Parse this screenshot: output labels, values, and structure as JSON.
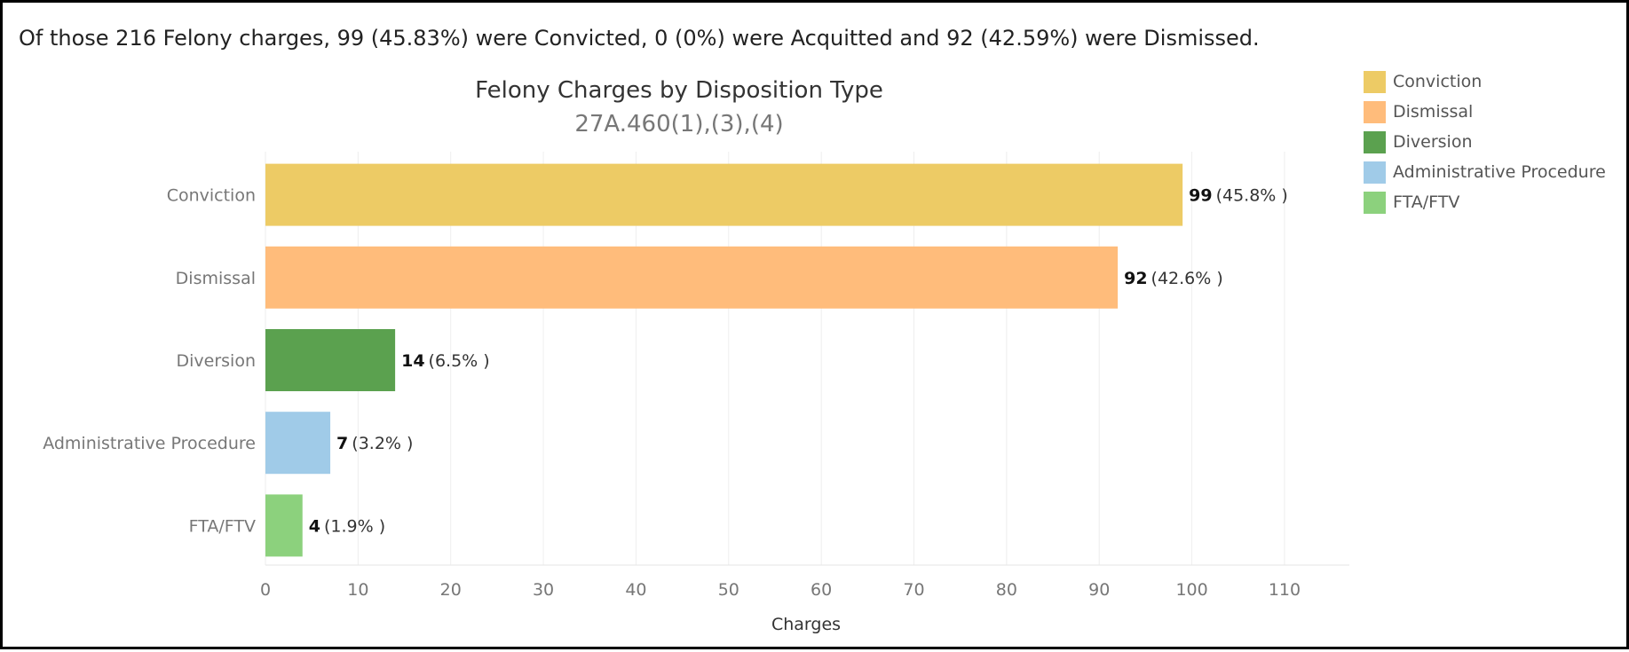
{
  "summary": "Of those 216 Felony charges, 99 (45.83%) were Convicted, 0 (0%) were Acquitted and 92 (42.59%) were Dismissed.",
  "chart_data": {
    "type": "bar",
    "orientation": "horizontal",
    "title": "Felony Charges by Disposition Type",
    "subtitle": "27A.460(1),(3),(4)",
    "xlabel": "Charges",
    "ylabel": "",
    "xlim": [
      0,
      117
    ],
    "xticks": [
      0,
      10,
      20,
      30,
      40,
      50,
      60,
      70,
      80,
      90,
      100,
      110
    ],
    "grid": "vertical",
    "categories": [
      "Conviction",
      "Dismissal",
      "Diversion",
      "Administrative Procedure",
      "FTA/FTV"
    ],
    "values": [
      99,
      92,
      14,
      7,
      4
    ],
    "data_labels": [
      "(45.8% )",
      "(42.6% )",
      "(6.5% )",
      "(3.2% )",
      "(1.9% )"
    ],
    "colors": [
      "#EDCB65",
      "#FFBC7B",
      "#5BA14F",
      "#A0CBE8",
      "#8CD17D"
    ],
    "legend": {
      "placement": "top-right",
      "entries": [
        {
          "label": "Conviction",
          "color": "#EDCB65"
        },
        {
          "label": "Dismissal",
          "color": "#FFBC7B"
        },
        {
          "label": "Diversion",
          "color": "#5BA14F"
        },
        {
          "label": "Administrative Procedure",
          "color": "#A0CBE8"
        },
        {
          "label": "FTA/FTV",
          "color": "#8CD17D"
        }
      ]
    }
  }
}
